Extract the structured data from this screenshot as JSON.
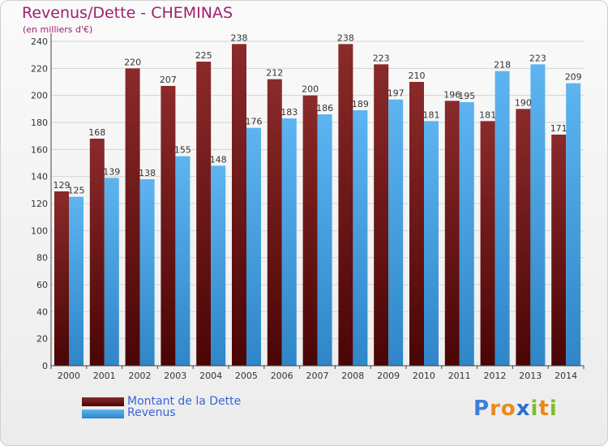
{
  "header": {
    "title": "Revenus/Dette - CHEMINAS",
    "subtitle": "(en milliers d'€)"
  },
  "chart_data": {
    "type": "bar",
    "categories": [
      "2000",
      "2001",
      "2002",
      "2003",
      "2004",
      "2005",
      "2006",
      "2007",
      "2008",
      "2009",
      "2010",
      "2011",
      "2012",
      "2013",
      "2014"
    ],
    "series": [
      {
        "name": "Montant de la Dette",
        "color": "#7a1a1a",
        "values": [
          129,
          168,
          220,
          207,
          225,
          238,
          212,
          200,
          238,
          223,
          210,
          196,
          181,
          190,
          171
        ]
      },
      {
        "name": "Revenus",
        "color": "#4aa3e6",
        "values": [
          125,
          139,
          138,
          155,
          148,
          176,
          183,
          186,
          189,
          197,
          181,
          195,
          218,
          223,
          209
        ]
      }
    ],
    "data_labels": [
      [
        "129",
        "168",
        "220",
        "207",
        "225",
        "238",
        "212",
        "200",
        "238",
        "223",
        "210",
        "196",
        "181",
        "190",
        "171"
      ],
      [
        "125",
        "139",
        "138",
        "155",
        "148",
        "176",
        "183",
        "186",
        "189",
        "197",
        "181",
        "195",
        "218",
        "223",
        "209"
      ]
    ],
    "ylim": [
      0,
      240
    ],
    "yticks": [
      0,
      20,
      40,
      60,
      80,
      100,
      120,
      140,
      160,
      180,
      200,
      220,
      240
    ],
    "grid": true,
    "legend_position": "bottom-left"
  },
  "legend": {
    "items": [
      {
        "label": "Montant de la Dette"
      },
      {
        "label": "Revenus"
      }
    ]
  },
  "logo": {
    "letters": [
      "P",
      "r",
      "o",
      "x",
      "i",
      "t",
      "i"
    ],
    "colors": [
      "#3a7fd8",
      "#e88a1a",
      "#e88a1a",
      "#2a6fd0",
      "#7bbf2a",
      "#e88a1a",
      "#7bbf2a"
    ]
  }
}
